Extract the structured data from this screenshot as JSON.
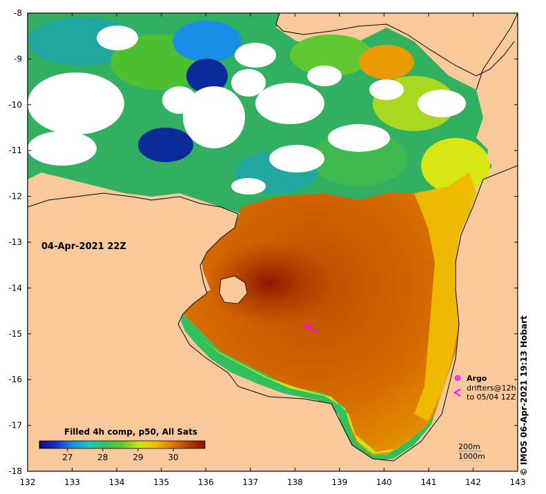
{
  "timestamp": "04-Apr-2021 22Z",
  "credit": "©  IMOS 06-Apr-2021 19:13 Hobart",
  "axes": {
    "x_ticks": [
      "132",
      "133",
      "134",
      "135",
      "136",
      "137",
      "138",
      "139",
      "140",
      "141",
      "142",
      "143"
    ],
    "y_ticks": [
      "-8",
      "-9",
      "-10",
      "-11",
      "-12",
      "-13",
      "-14",
      "-15",
      "-16",
      "-17",
      "-18"
    ]
  },
  "colorbar": {
    "title": "Filled 4h comp, p50, All Sats",
    "ticks": [
      "27",
      "28",
      "29",
      "30"
    ],
    "range": [
      26.2,
      30.9
    ],
    "colors": [
      "#0a0a8a",
      "#1030d0",
      "#1a8fe6",
      "#16c8b8",
      "#30c060",
      "#60c830",
      "#c8e614",
      "#f0c000",
      "#e07a00",
      "#b83c00",
      "#8a1400"
    ]
  },
  "legend": {
    "argo_label": "Argo",
    "drifters_label": "drifters@12h",
    "drifters_period": "to 05/04 12Z",
    "argo_symbol": "circle-asterisk-icon",
    "drifter_symbol": "arrowhead-icon"
  },
  "depth_labels": [
    "200m",
    "1000m"
  ],
  "colors": {
    "land": "#f9c99b",
    "cloud": "#ffffff",
    "frame": "#000000",
    "marker": "#ff00ff"
  }
}
